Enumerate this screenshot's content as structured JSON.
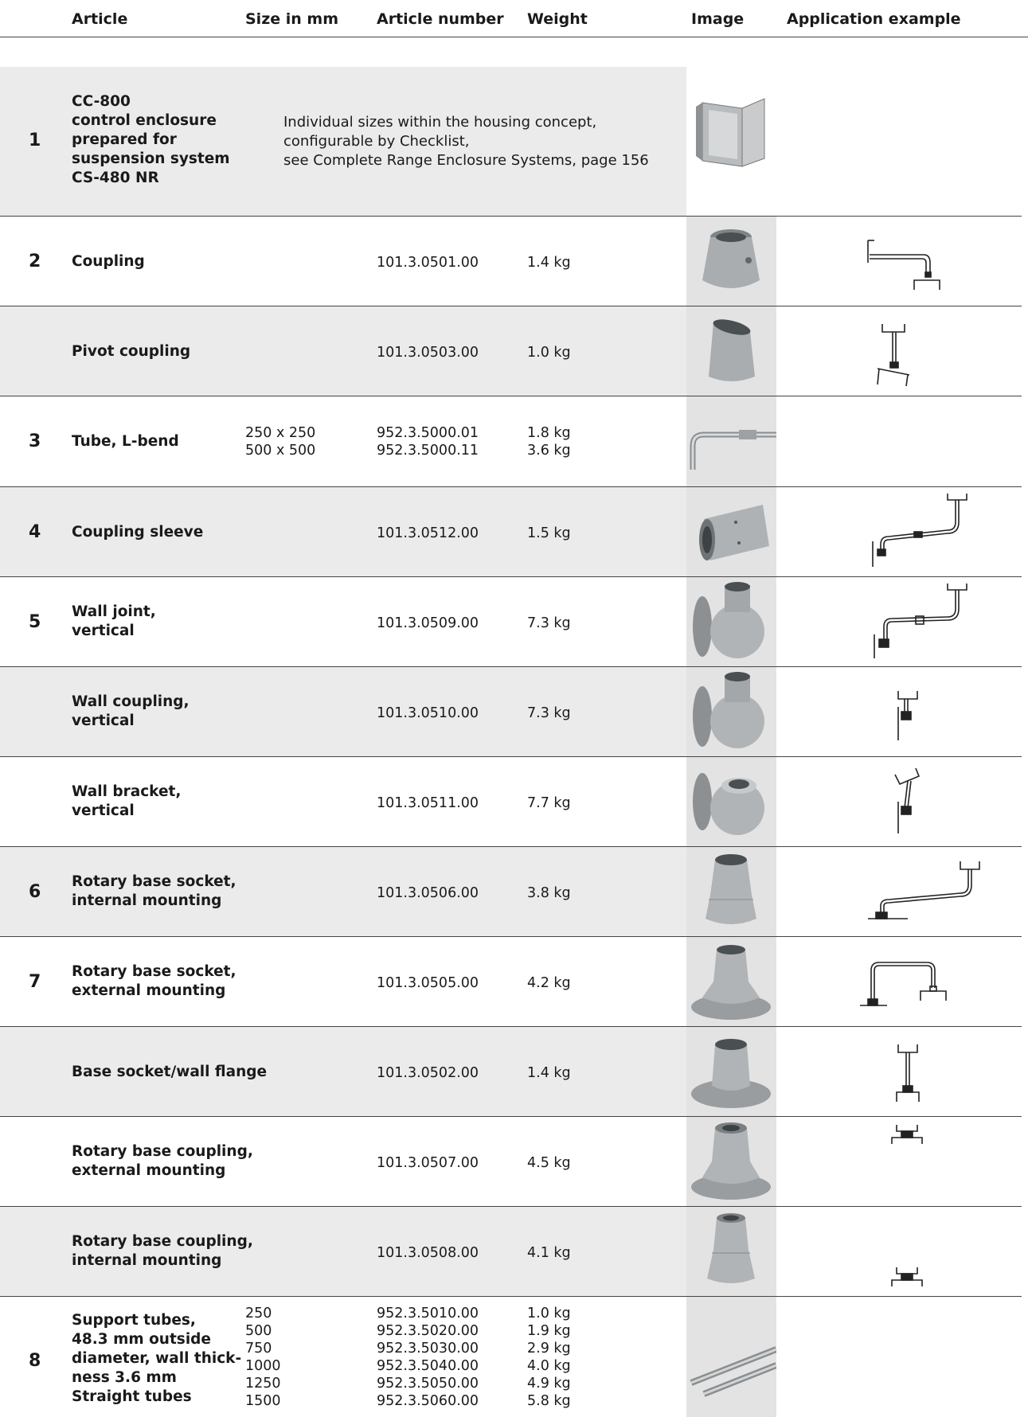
{
  "header": {
    "article": "Article",
    "size": "Size in mm",
    "article_number": "Article number",
    "weight": "Weight",
    "image": "Image",
    "application": "Application example"
  },
  "rows": [
    {
      "num": "1",
      "article": [
        "CC-800",
        "control enclosure",
        "prepared for",
        "suspension system",
        "CS-480 NR"
      ],
      "description": [
        "Individual sizes within the housing concept,",
        "configurable by Checklist,",
        "see Complete Range Enclosure Systems, page 156"
      ],
      "image_icon": "control-enclosure-photo"
    },
    {
      "num": "2",
      "article": [
        "Coupling"
      ],
      "sizes": [],
      "numbers": [
        "101.3.0501.00"
      ],
      "weights": [
        "1.4 kg"
      ],
      "image_icon": "coupling-photo",
      "diagram_icon": "coupling-diagram"
    },
    {
      "num": "",
      "article": [
        "Pivot coupling"
      ],
      "sizes": [],
      "numbers": [
        "101.3.0503.00"
      ],
      "weights": [
        "1.0 kg"
      ],
      "image_icon": "pivot-coupling-photo",
      "diagram_icon": "pivot-coupling-diagram"
    },
    {
      "num": "3",
      "article": [
        "Tube, L-bend"
      ],
      "sizes": [
        "250 x 250",
        "500 x 500"
      ],
      "numbers": [
        "952.3.5000.01",
        "952.3.5000.11"
      ],
      "weights": [
        "1.8 kg",
        "3.6 kg"
      ],
      "image_icon": "tube-l-bend-photo"
    },
    {
      "num": "4",
      "article": [
        "Coupling sleeve"
      ],
      "sizes": [],
      "numbers": [
        "101.3.0512.00"
      ],
      "weights": [
        "1.5 kg"
      ],
      "image_icon": "coupling-sleeve-photo",
      "diagram_icon": "coupling-sleeve-diagram"
    },
    {
      "num": "5",
      "article": [
        "Wall joint,",
        "vertical"
      ],
      "sizes": [],
      "numbers": [
        "101.3.0509.00"
      ],
      "weights": [
        "7.3 kg"
      ],
      "image_icon": "wall-joint-photo",
      "diagram_icon": "wall-joint-diagram"
    },
    {
      "num": "",
      "article": [
        "Wall coupling,",
        "vertical"
      ],
      "sizes": [],
      "numbers": [
        "101.3.0510.00"
      ],
      "weights": [
        "7.3 kg"
      ],
      "image_icon": "wall-coupling-photo",
      "diagram_icon": "wall-coupling-diagram"
    },
    {
      "num": "",
      "article": [
        "Wall bracket,",
        "vertical"
      ],
      "sizes": [],
      "numbers": [
        "101.3.0511.00"
      ],
      "weights": [
        "7.7 kg"
      ],
      "image_icon": "wall-bracket-photo",
      "diagram_icon": "wall-bracket-diagram"
    },
    {
      "num": "6",
      "article": [
        "Rotary base socket,",
        "internal mounting"
      ],
      "sizes": [],
      "numbers": [
        "101.3.0506.00"
      ],
      "weights": [
        "3.8 kg"
      ],
      "image_icon": "rotary-base-socket-internal-photo",
      "diagram_icon": "rotary-base-socket-internal-diagram"
    },
    {
      "num": "7",
      "article": [
        "Rotary base socket,",
        "external mounting"
      ],
      "sizes": [],
      "numbers": [
        "101.3.0505.00"
      ],
      "weights": [
        "4.2 kg"
      ],
      "image_icon": "rotary-base-socket-external-photo",
      "diagram_icon": "rotary-base-socket-external-diagram"
    },
    {
      "num": "",
      "article": [
        "Base socket/wall flange"
      ],
      "sizes": [],
      "numbers": [
        "101.3.0502.00"
      ],
      "weights": [
        "1.4 kg"
      ],
      "image_icon": "base-socket-wall-flange-photo",
      "diagram_icon": "base-socket-wall-flange-diagram"
    },
    {
      "num": "",
      "article": [
        "Rotary base coupling,",
        "external mounting"
      ],
      "sizes": [],
      "numbers": [
        "101.3.0507.00"
      ],
      "weights": [
        "4.5 kg"
      ],
      "image_icon": "rotary-base-coupling-external-photo",
      "diagram_icon": "rotary-base-coupling-external-diagram"
    },
    {
      "num": "",
      "article": [
        "Rotary base coupling,",
        "internal mounting"
      ],
      "sizes": [],
      "numbers": [
        "101.3.0508.00"
      ],
      "weights": [
        "4.1 kg"
      ],
      "image_icon": "rotary-base-coupling-internal-photo",
      "diagram_icon": "rotary-base-coupling-internal-diagram"
    },
    {
      "num": "8",
      "article": [
        "Support tubes,",
        "48.3 mm outside",
        "diameter, wall thick-",
        "ness 3.6 mm",
        "Straight tubes"
      ],
      "sizes": [
        "250",
        "500",
        "750",
        "1000",
        "1250",
        "1500"
      ],
      "numbers": [
        "952.3.5010.00",
        "952.3.5020.00",
        "952.3.5030.00",
        "952.3.5040.00",
        "952.3.5050.00",
        "952.3.5060.00"
      ],
      "weights": [
        "1.0 kg",
        "1.9 kg",
        "2.9 kg",
        "4.0 kg",
        "4.9 kg",
        "5.8 kg"
      ],
      "image_icon": "support-tubes-photo"
    }
  ]
}
